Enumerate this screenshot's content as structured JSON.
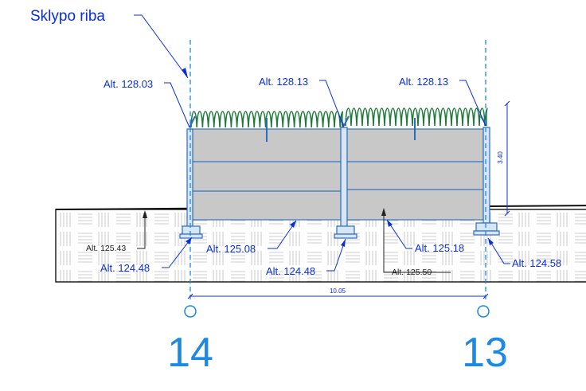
{
  "title": "Sklypo riba",
  "grid_axes": {
    "left": "14",
    "right": "13"
  },
  "top_elevations": [
    "Alt. 128.03",
    "Alt. 128.13",
    "Alt. 128.13"
  ],
  "ground_elevations": {
    "ground_left": "Alt. 125.43",
    "base_left": "Alt. 124.48",
    "fence_bottom": "Alt. 125.08",
    "base_middle": "Alt. 124.48",
    "ground_middle": "Alt. 125.50",
    "fence_bottom_right": "Alt. 125.18",
    "base_right": "Alt. 124.58"
  },
  "dimensions": {
    "height": "3.40",
    "length": "10.05"
  },
  "colors": {
    "accent_blue": "#0a2fd6",
    "grid_blue": "#1e88e5",
    "panel_gray": "#c8c8c8",
    "wire_green": "#1f7a3a"
  }
}
